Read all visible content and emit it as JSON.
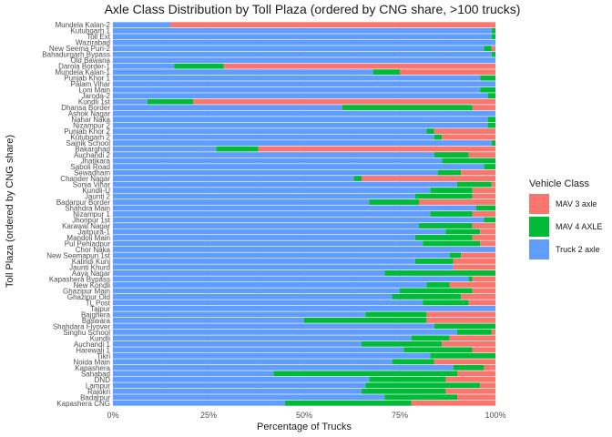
{
  "chart_data": {
    "type": "bar",
    "orientation": "horizontal",
    "stacked": true,
    "title": "Axle Class Distribution by Toll Plaza (ordered by CNG share, >100 trucks)",
    "xlabel": "Percentage of Trucks",
    "ylabel": "Toll Plaza (ordered by CNG share)",
    "xlim": [
      0,
      100
    ],
    "xticks": [
      "0%",
      "25%",
      "50%",
      "75%",
      "100%"
    ],
    "grid": true,
    "legend": {
      "title": "Vehicle Class",
      "position": "right"
    },
    "categories": [
      "Mundela Kalan-2",
      "Kutubgarh 1",
      "Toll Ext",
      "Wazirabad",
      "New Seema Puri-2",
      "Bahadurgarh Bypass",
      "Old Bawana",
      "Darola Border-1",
      "Mundela Kalan-1",
      "Punjab Khor 1",
      "Palam Vihar",
      "Loni Main",
      "Jaroda-2",
      "Kundli 1st",
      "Dhansa Border",
      "Ashok Nagar",
      "Nahar Naka",
      "Nizampur 2",
      "Punjab Khor 2",
      "Kutubgarh 2",
      "Sainik School",
      "Bakarghad",
      "Auchandi 2",
      "Jhatikara",
      "Saboli Road",
      "Sewadham",
      "Chander Nagar",
      "Sonia Vihar",
      "Kundli-U",
      "Jaunti 2",
      "Badarpur Border",
      "Shahdra Main",
      "Nizampur 1",
      "Jhoripur 1st",
      "Karawal Nagar",
      "Jaitpura-1",
      "Mandoli Main",
      "Pul Pehladpur",
      "Chor Naka",
      "New Seemapuri 1st",
      "Kalindi Kunj",
      "Jaunti Khurd",
      "Aaya Nagar",
      "Kapashera Bypass",
      "New Kondli",
      "Ghazipur Main",
      "Ghazipur Old",
      "TL Post",
      "Tajpur",
      "Bajghera",
      "Baswara",
      "Shahdara Flyover",
      "Singhu School",
      "Kundli",
      "Auchandi 1",
      "Harewali 1",
      "Tikri",
      "Noida Main",
      "Kapashera",
      "Sahabad",
      "DND",
      "Lampur",
      "Rajokri",
      "Badarpur",
      "Kapashera CNG"
    ],
    "series": [
      {
        "name": "MAV 3 axle",
        "color": "#F8766D",
        "values": [
          85,
          0,
          0,
          0,
          1,
          0,
          0,
          71,
          25,
          0,
          0,
          0,
          0,
          79,
          6,
          0,
          0,
          0,
          16,
          14,
          0,
          62,
          7,
          0,
          0,
          9,
          35,
          1,
          6,
          6,
          20,
          0,
          6,
          0,
          6,
          4,
          6,
          4,
          0,
          9,
          11,
          11,
          0,
          6,
          12,
          6,
          9,
          7,
          0,
          18,
          18,
          0,
          1,
          12,
          14,
          6,
          0,
          16,
          3,
          10,
          13,
          4,
          13,
          10,
          22
        ]
      },
      {
        "name": "MAV 4 AXLE",
        "color": "#00BA38",
        "values": [
          0,
          1,
          1,
          0,
          2,
          1,
          0,
          13,
          7,
          4,
          0,
          4,
          2,
          12,
          34,
          0,
          2,
          2,
          2,
          2,
          1,
          11,
          9,
          14,
          3,
          6,
          2,
          9,
          11,
          15,
          13,
          5,
          11,
          3,
          14,
          9,
          15,
          15,
          0,
          3,
          10,
          0,
          29,
          1,
          6,
          19,
          18,
          12,
          0,
          16,
          32,
          16,
          9,
          10,
          21,
          18,
          17,
          11,
          8,
          48,
          20,
          30,
          22,
          19,
          33
        ]
      },
      {
        "name": "Truck 2 axle",
        "color": "#619CFF",
        "values": [
          15,
          99,
          99,
          100,
          97,
          99,
          100,
          16,
          68,
          96,
          100,
          96,
          98,
          9,
          60,
          100,
          98,
          98,
          82,
          84,
          99,
          27,
          84,
          86,
          97,
          85,
          63,
          90,
          83,
          79,
          67,
          95,
          83,
          97,
          80,
          87,
          79,
          81,
          100,
          88,
          79,
          89,
          71,
          93,
          82,
          75,
          73,
          81,
          100,
          66,
          50,
          84,
          90,
          78,
          65,
          76,
          83,
          73,
          89,
          42,
          67,
          66,
          65,
          71,
          45
        ]
      }
    ]
  }
}
